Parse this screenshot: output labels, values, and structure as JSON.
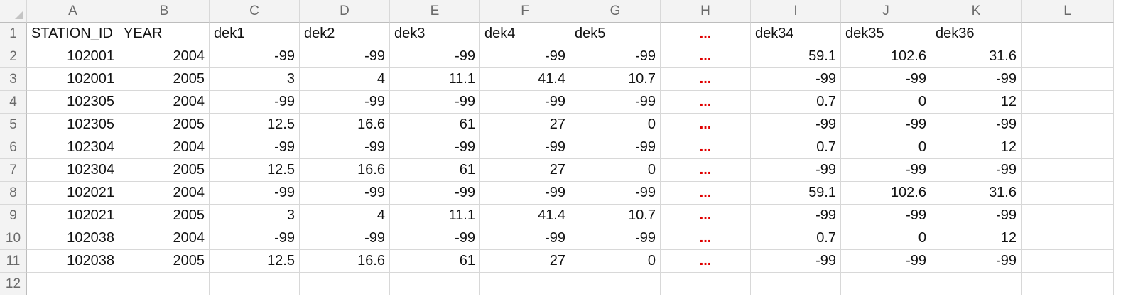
{
  "columns": [
    "A",
    "B",
    "C",
    "D",
    "E",
    "F",
    "G",
    "H",
    "I",
    "J",
    "K",
    "L"
  ],
  "row_numbers": [
    "1",
    "2",
    "3",
    "4",
    "5",
    "6",
    "7",
    "8",
    "9",
    "10",
    "11",
    "12"
  ],
  "header": [
    "STATION_ID",
    "YEAR",
    "dek1",
    "dek2",
    "dek3",
    "dek4",
    "dek5",
    "...",
    "dek34",
    "dek35",
    "dek36",
    ""
  ],
  "rows": [
    [
      "102001",
      "2004",
      "-99",
      "-99",
      "-99",
      "-99",
      "-99",
      "...",
      "59.1",
      "102.6",
      "31.6",
      ""
    ],
    [
      "102001",
      "2005",
      "3",
      "4",
      "11.1",
      "41.4",
      "10.7",
      "...",
      "-99",
      "-99",
      "-99",
      ""
    ],
    [
      "102305",
      "2004",
      "-99",
      "-99",
      "-99",
      "-99",
      "-99",
      "...",
      "0.7",
      "0",
      "12",
      ""
    ],
    [
      "102305",
      "2005",
      "12.5",
      "16.6",
      "61",
      "27",
      "0",
      "...",
      "-99",
      "-99",
      "-99",
      ""
    ],
    [
      "102304",
      "2004",
      "-99",
      "-99",
      "-99",
      "-99",
      "-99",
      "...",
      "0.7",
      "0",
      "12",
      ""
    ],
    [
      "102304",
      "2005",
      "12.5",
      "16.6",
      "61",
      "27",
      "0",
      "...",
      "-99",
      "-99",
      "-99",
      ""
    ],
    [
      "102021",
      "2004",
      "-99",
      "-99",
      "-99",
      "-99",
      "-99",
      "...",
      "59.1",
      "102.6",
      "31.6",
      ""
    ],
    [
      "102021",
      "2005",
      "3",
      "4",
      "11.1",
      "41.4",
      "10.7",
      "...",
      "-99",
      "-99",
      "-99",
      ""
    ],
    [
      "102038",
      "2004",
      "-99",
      "-99",
      "-99",
      "-99",
      "-99",
      "...",
      "0.7",
      "0",
      "12",
      ""
    ],
    [
      "102038",
      "2005",
      "12.5",
      "16.6",
      "61",
      "27",
      "0",
      "...",
      "-99",
      "-99",
      "-99",
      ""
    ],
    [
      "",
      "",
      "",
      "",
      "",
      "",
      "",
      "",
      "",
      "",
      "",
      ""
    ]
  ],
  "colors": {
    "ellipsis": "#e00000",
    "header_bg": "#f3f3f3",
    "grid": "#d8d8d8"
  }
}
